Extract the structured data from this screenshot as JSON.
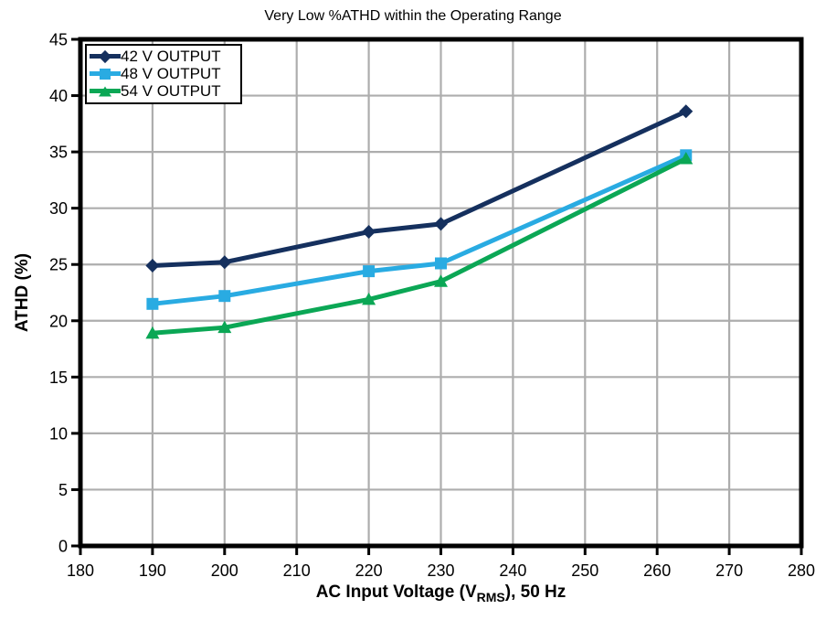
{
  "chart_data": {
    "type": "line",
    "title": "Very Low %ATHD within the Operating Range",
    "xlabel": "AC Input Voltage (V_RMS), 50 Hz",
    "xlabel_prefix": "AC Input Voltage (V",
    "xlabel_sub": "RMS",
    "xlabel_suffix": "), 50 Hz",
    "ylabel": "ATHD (%)",
    "xlim": [
      180,
      280
    ],
    "ylim": [
      0,
      45
    ],
    "xticks": [
      180,
      190,
      200,
      210,
      220,
      230,
      240,
      250,
      260,
      270,
      280
    ],
    "yticks": [
      0,
      5,
      10,
      15,
      20,
      25,
      30,
      35,
      40,
      45
    ],
    "grid": true,
    "legend_position": "top-left",
    "x": [
      190,
      200,
      220,
      230,
      264
    ],
    "series": [
      {
        "name": "42 V OUTPUT",
        "marker": "diamond",
        "color": "#15305E",
        "values": [
          24.9,
          25.2,
          27.9,
          28.6,
          38.6
        ]
      },
      {
        "name": "48 V OUTPUT",
        "marker": "square",
        "color": "#29ABE2",
        "values": [
          21.5,
          22.2,
          24.4,
          25.1,
          34.7
        ]
      },
      {
        "name": "54 V OUTPUT",
        "marker": "triangle",
        "color": "#0BA755",
        "values": [
          18.9,
          19.4,
          21.9,
          23.5,
          34.4
        ]
      }
    ],
    "colors": {
      "grid": "#ADADAD",
      "axis": "#000000",
      "background": "#FFFFFF"
    }
  }
}
